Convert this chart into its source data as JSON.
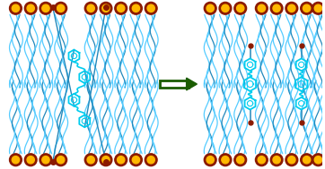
{
  "bg_color": "#ffffff",
  "head_dark": "#8B1A00",
  "head_inner": "#FFB800",
  "tail_light": "#55CCFF",
  "tail_dark": "#2288BB",
  "coe_color": "#00CCEE",
  "arrow_color": "#1A5C00",
  "arrow_fill": "#ffffff"
}
